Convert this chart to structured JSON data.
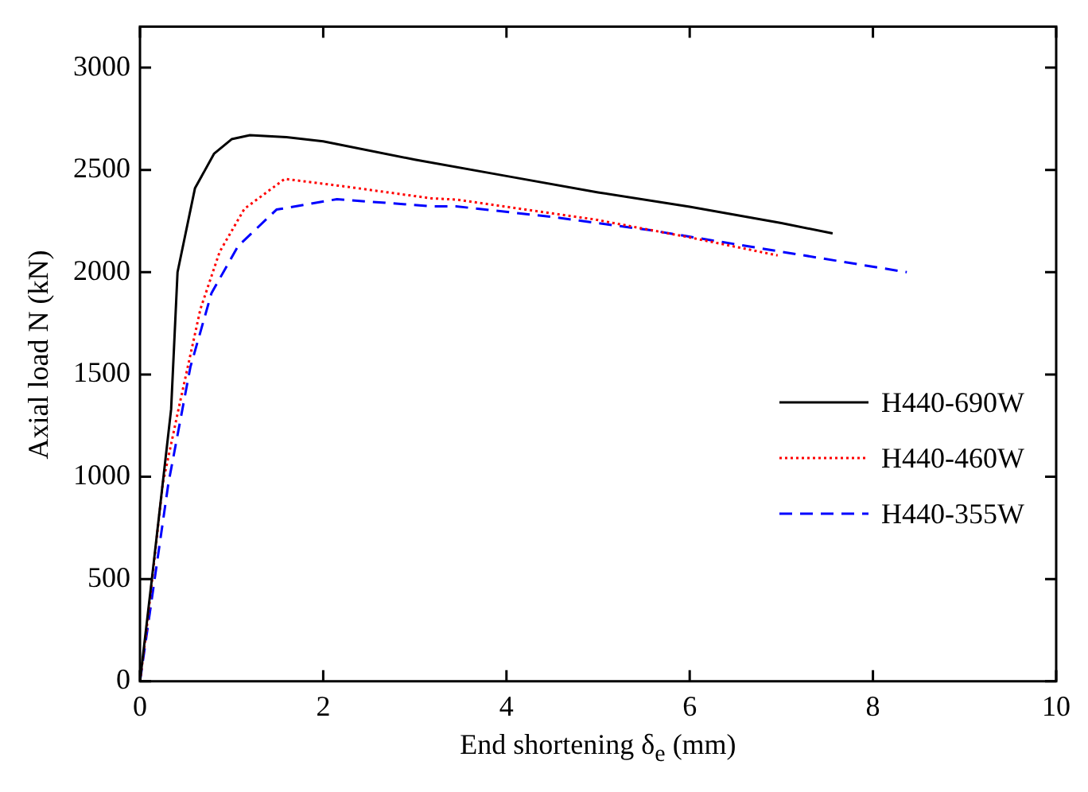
{
  "chart_data": {
    "type": "line",
    "xlabel": "End shortening δ$_{e}$ (mm)",
    "ylabel": "Axial load N (kN)",
    "xlim": [
      0,
      10
    ],
    "xticks": [
      0,
      2,
      4,
      6,
      8,
      10
    ],
    "ylim": [
      0,
      3200
    ],
    "yticks": [
      0,
      500,
      1000,
      1500,
      2000,
      2500,
      3000
    ],
    "legend": "right",
    "marker": "none",
    "series": [
      {
        "name": "H440-690W",
        "color": "#000000",
        "line_style": "solid",
        "x": [
          0,
          0.13,
          0.34,
          0.41,
          0.6,
          0.81,
          1.0,
          1.2,
          1.6,
          2.0,
          3.0,
          4.0,
          5.0,
          6.0,
          7.0,
          7.56
        ],
        "values": [
          0,
          500,
          1330,
          2000,
          2410,
          2580,
          2650,
          2670,
          2660,
          2640,
          2550,
          2470,
          2390,
          2320,
          2240,
          2190
        ]
      },
      {
        "name": "H440-460W",
        "color": "#ff0000",
        "line_style": "dotted",
        "x": [
          0,
          0.07,
          0.25,
          0.43,
          0.66,
          0.87,
          1.14,
          1.58,
          2.27,
          3.18,
          3.45,
          4.96,
          6.0,
          6.96
        ],
        "values": [
          0,
          245,
          970,
          1350,
          1820,
          2100,
          2310,
          2456,
          2417,
          2361,
          2355,
          2258,
          2170,
          2082
        ]
      },
      {
        "name": "H440-355W",
        "color": "#0000ff",
        "line_style": "dashed",
        "x": [
          0,
          0.31,
          0.55,
          0.78,
          1.07,
          1.49,
          2.15,
          3.18,
          3.45,
          4.5,
          5.56,
          7.0,
          8.37
        ],
        "values": [
          0,
          967,
          1536,
          1897,
          2127,
          2306,
          2357,
          2322,
          2322,
          2270,
          2206,
          2100,
          2000
        ]
      }
    ]
  }
}
